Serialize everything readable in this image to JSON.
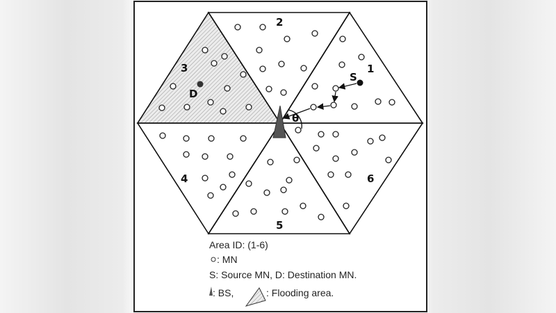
{
  "areas": {
    "a1": "1",
    "a2": "2",
    "a3": "3",
    "a4": "4",
    "a5": "5",
    "a6": "6"
  },
  "labels": {
    "source": "S",
    "destination": "D",
    "angle": "θ"
  },
  "legend": {
    "area_id": "Area ID: (1-6)",
    "mn": ": MN",
    "sd": "S: Source MN, D: Destination MN.",
    "bs": ": BS,",
    "flooding": ": Flooding area."
  },
  "colors": {
    "line": "#111111",
    "bs": "#555555",
    "hatch_bg": "#e8e8e8",
    "node": "#222222"
  },
  "flooding_area": "3"
}
